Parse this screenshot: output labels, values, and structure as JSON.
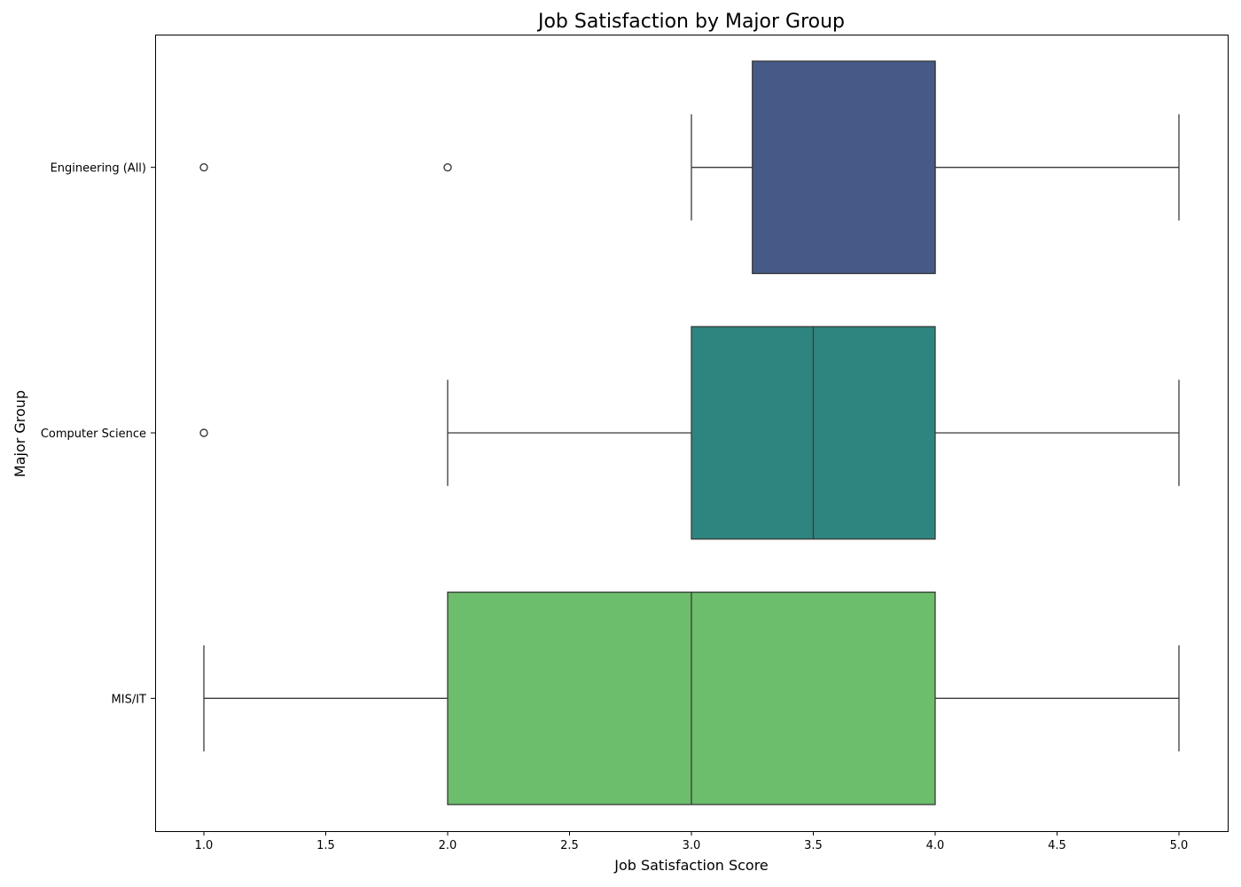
{
  "chart_data": {
    "type": "box",
    "title": "Job Satisfaction by Major Group",
    "xlabel": "Job Satisfaction Score",
    "ylabel": "Major Group",
    "xlim": [
      0.8,
      5.2
    ],
    "x_ticks": [
      1.0,
      1.5,
      2.0,
      2.5,
      3.0,
      3.5,
      4.0,
      4.5,
      5.0
    ],
    "x_tick_labels": [
      "1.0",
      "1.5",
      "2.0",
      "2.5",
      "3.0",
      "3.5",
      "4.0",
      "4.5",
      "5.0"
    ],
    "orientation": "horizontal",
    "grid": false,
    "groups": [
      {
        "name": "Engineering (All)",
        "color": "#465a88",
        "whisker_low": 3.0,
        "q1": 3.25,
        "median": 4.0,
        "q3": 4.0,
        "whisker_high": 5.0,
        "outliers": [
          1.0,
          2.0
        ]
      },
      {
        "name": "Computer Science",
        "color": "#2e847e",
        "whisker_low": 2.0,
        "q1": 3.0,
        "median": 3.5,
        "q3": 4.0,
        "whisker_high": 5.0,
        "outliers": [
          1.0
        ]
      },
      {
        "name": "MIS/IT",
        "color": "#6cbd6c",
        "whisker_low": 1.0,
        "q1": 2.0,
        "median": 3.0,
        "q3": 4.0,
        "whisker_high": 5.0,
        "outliers": []
      }
    ]
  }
}
